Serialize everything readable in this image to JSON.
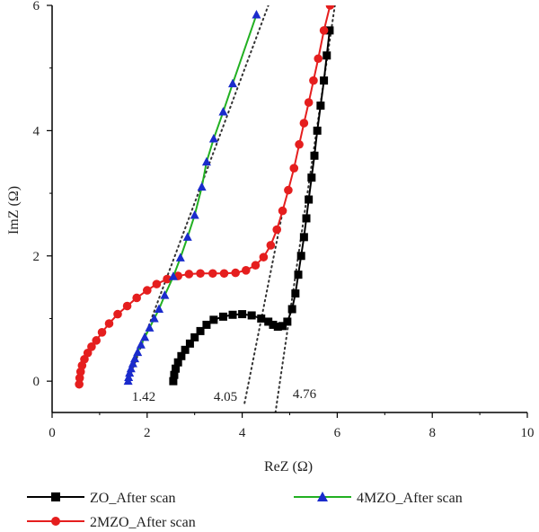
{
  "chart_data": {
    "type": "scatter",
    "xlabel": "ReZ (Ω)",
    "ylabel": "ImZ (Ω)",
    "xlim": [
      0,
      10
    ],
    "ylim": [
      -0.5,
      6
    ],
    "xticks": [
      "0",
      "2",
      "4",
      "6",
      "8",
      "10"
    ],
    "yticks": [
      "0",
      "2",
      "4",
      "6"
    ],
    "grid": false,
    "legend_position": "bottom",
    "series": [
      {
        "name": "ZO_After scan",
        "color": "#000000",
        "marker": "square",
        "line_color": "#000000",
        "points": [
          [
            2.55,
            0.0
          ],
          [
            2.57,
            0.1
          ],
          [
            2.6,
            0.2
          ],
          [
            2.65,
            0.3
          ],
          [
            2.72,
            0.4
          ],
          [
            2.8,
            0.5
          ],
          [
            2.9,
            0.6
          ],
          [
            3.0,
            0.7
          ],
          [
            3.12,
            0.8
          ],
          [
            3.25,
            0.9
          ],
          [
            3.4,
            0.98
          ],
          [
            3.6,
            1.03
          ],
          [
            3.8,
            1.06
          ],
          [
            4.0,
            1.07
          ],
          [
            4.2,
            1.05
          ],
          [
            4.4,
            1.0
          ],
          [
            4.55,
            0.95
          ],
          [
            4.65,
            0.9
          ],
          [
            4.75,
            0.87
          ],
          [
            4.85,
            0.88
          ],
          [
            4.95,
            0.95
          ],
          [
            5.05,
            1.15
          ],
          [
            5.12,
            1.4
          ],
          [
            5.18,
            1.7
          ],
          [
            5.24,
            2.0
          ],
          [
            5.3,
            2.3
          ],
          [
            5.35,
            2.6
          ],
          [
            5.4,
            2.9
          ],
          [
            5.46,
            3.25
          ],
          [
            5.52,
            3.6
          ],
          [
            5.58,
            4.0
          ],
          [
            5.65,
            4.4
          ],
          [
            5.72,
            4.8
          ],
          [
            5.78,
            5.2
          ],
          [
            5.84,
            5.6
          ]
        ],
        "fit_line": [
          [
            4.7,
            -0.5
          ],
          [
            5.95,
            6.0
          ]
        ]
      },
      {
        "name": "2MZO_After scan",
        "color": "#e51e1e",
        "marker": "circle",
        "line_color": "#e51e1e",
        "points": [
          [
            0.57,
            -0.05
          ],
          [
            0.58,
            0.05
          ],
          [
            0.6,
            0.15
          ],
          [
            0.63,
            0.25
          ],
          [
            0.68,
            0.35
          ],
          [
            0.75,
            0.45
          ],
          [
            0.83,
            0.55
          ],
          [
            0.93,
            0.65
          ],
          [
            1.05,
            0.78
          ],
          [
            1.2,
            0.92
          ],
          [
            1.38,
            1.07
          ],
          [
            1.58,
            1.2
          ],
          [
            1.78,
            1.33
          ],
          [
            2.0,
            1.45
          ],
          [
            2.2,
            1.55
          ],
          [
            2.42,
            1.63
          ],
          [
            2.65,
            1.68
          ],
          [
            2.88,
            1.71
          ],
          [
            3.12,
            1.72
          ],
          [
            3.38,
            1.72
          ],
          [
            3.62,
            1.72
          ],
          [
            3.86,
            1.73
          ],
          [
            4.08,
            1.77
          ],
          [
            4.28,
            1.85
          ],
          [
            4.45,
            1.98
          ],
          [
            4.6,
            2.17
          ],
          [
            4.73,
            2.42
          ],
          [
            4.85,
            2.72
          ],
          [
            4.97,
            3.05
          ],
          [
            5.09,
            3.4
          ],
          [
            5.2,
            3.78
          ],
          [
            5.3,
            4.12
          ],
          [
            5.4,
            4.45
          ],
          [
            5.5,
            4.8
          ],
          [
            5.6,
            5.15
          ],
          [
            5.72,
            5.6
          ],
          [
            5.85,
            6.0
          ]
        ],
        "fit_line": [
          [
            4.05,
            -0.35
          ],
          [
            4.85,
            2.7
          ]
        ]
      },
      {
        "name": "4MZO_After scan",
        "color": "#1a2bcc",
        "marker": "triangle",
        "line_color": "#22b022",
        "points": [
          [
            1.6,
            0.0
          ],
          [
            1.61,
            0.06
          ],
          [
            1.63,
            0.13
          ],
          [
            1.66,
            0.2
          ],
          [
            1.7,
            0.28
          ],
          [
            1.74,
            0.36
          ],
          [
            1.8,
            0.46
          ],
          [
            1.87,
            0.58
          ],
          [
            1.95,
            0.7
          ],
          [
            2.05,
            0.85
          ],
          [
            2.15,
            1.0
          ],
          [
            2.25,
            1.15
          ],
          [
            2.37,
            1.37
          ],
          [
            2.55,
            1.67
          ],
          [
            2.7,
            1.97
          ],
          [
            2.85,
            2.3
          ],
          [
            3.0,
            2.65
          ],
          [
            3.15,
            3.1
          ],
          [
            3.25,
            3.5
          ],
          [
            3.4,
            3.87
          ],
          [
            3.6,
            4.3
          ],
          [
            3.8,
            4.75
          ],
          [
            4.3,
            5.85
          ]
        ],
        "fit_line": [
          [
            1.6,
            0.0
          ],
          [
            4.55,
            6.0
          ]
        ]
      }
    ],
    "annotations": [
      "1.42",
      "4.05",
      "4.76"
    ]
  }
}
